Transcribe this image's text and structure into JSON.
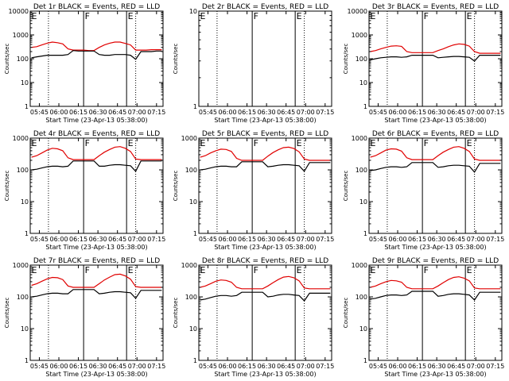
{
  "colors": {
    "events": "#000000",
    "lld": "#e00000",
    "axis": "#000000",
    "background": "#ffffff"
  },
  "common": {
    "ylabel": "Counts/sec",
    "xlabel": "Start Time (23-Apr-13 05:38:00)",
    "xticks": [
      "05:45",
      "06:00",
      "06:15",
      "06:30",
      "06:45",
      "07:00",
      "07:15"
    ],
    "yticks_log": [
      "1",
      "10",
      "100",
      "1000",
      "10000"
    ],
    "yticks_empty": [
      "1",
      "10"
    ]
  },
  "chart_data": [
    {
      "type": "line",
      "title": "Det 1r BLACK = Events, RED = LLD",
      "yscale": "log",
      "ylim": [
        1,
        10000
      ],
      "xlim": [
        "05:38",
        "07:20"
      ],
      "flags": [
        {
          "label": "E",
          "x": "05:38"
        },
        {
          "label": "F",
          "x": "06:19"
        },
        {
          "label": "E",
          "x": "06:52"
        }
      ],
      "dotted_x": [
        "05:52",
        "06:59"
      ],
      "solid_x": [
        "06:19",
        "06:52"
      ],
      "series": [
        {
          "name": "LLD",
          "values": [
            300,
            320,
            380,
            450,
            500,
            470,
            420,
            260,
            230,
            230,
            230,
            220,
            220,
            300,
            380,
            450,
            500,
            500,
            440,
            380,
            230,
            230,
            230,
            240,
            240,
            240
          ]
        },
        {
          "name": "Events",
          "values": [
            110,
            120,
            130,
            140,
            140,
            140,
            140,
            150,
            220,
            210,
            210,
            210,
            210,
            150,
            140,
            140,
            150,
            150,
            150,
            140,
            95,
            200,
            200,
            200,
            210,
            210
          ]
        }
      ]
    },
    {
      "type": "line",
      "title": "Det 2r BLACK = Events, RED = LLD",
      "yscale": "log",
      "ylim": [
        1,
        10
      ],
      "xlim": [
        "05:38",
        "07:20"
      ],
      "flags": [
        {
          "label": "E",
          "x": "05:38"
        },
        {
          "label": "F",
          "x": "06:19"
        },
        {
          "label": "E",
          "x": "06:52"
        }
      ],
      "dotted_x": [
        "05:52",
        "06:59"
      ],
      "solid_x": [
        "06:19",
        "06:52"
      ],
      "series": []
    },
    {
      "type": "line",
      "title": "Det 3r BLACK = Events, RED = LLD",
      "yscale": "log",
      "ylim": [
        1,
        10000
      ],
      "xlim": [
        "05:38",
        "07:20"
      ],
      "flags": [
        {
          "label": "E",
          "x": "05:38"
        },
        {
          "label": "F",
          "x": "06:19"
        },
        {
          "label": "E",
          "x": "06:52"
        }
      ],
      "dotted_x": [
        "05:52",
        "06:59"
      ],
      "solid_x": [
        "06:19",
        "06:52"
      ],
      "series": [
        {
          "name": "LLD",
          "values": [
            200,
            220,
            260,
            300,
            340,
            350,
            330,
            200,
            180,
            180,
            180,
            180,
            180,
            220,
            260,
            320,
            380,
            420,
            400,
            340,
            200,
            170,
            170,
            170,
            170,
            170
          ]
        },
        {
          "name": "Events",
          "values": [
            90,
            100,
            110,
            115,
            120,
            120,
            115,
            120,
            140,
            140,
            140,
            140,
            140,
            110,
            115,
            120,
            125,
            125,
            120,
            115,
            80,
            140,
            140,
            140,
            140,
            140
          ]
        }
      ]
    },
    {
      "type": "line",
      "title": "Det 4r BLACK = Events, RED = LLD",
      "yscale": "log",
      "ylim": [
        1,
        1000
      ],
      "xlim": [
        "05:38",
        "07:20"
      ],
      "flags": [
        {
          "label": "E",
          "x": "05:38"
        },
        {
          "label": "F",
          "x": "06:19"
        },
        {
          "label": "E",
          "x": "06:52"
        }
      ],
      "dotted_x": [
        "05:52",
        "06:59"
      ],
      "solid_x": [
        "06:19",
        "06:52"
      ],
      "series": [
        {
          "name": "LLD",
          "values": [
            250,
            280,
            340,
            420,
            480,
            460,
            400,
            240,
            210,
            210,
            210,
            210,
            210,
            280,
            360,
            440,
            520,
            540,
            480,
            380,
            220,
            210,
            210,
            210,
            210,
            210
          ]
        },
        {
          "name": "Events",
          "values": [
            100,
            105,
            115,
            125,
            130,
            130,
            125,
            130,
            190,
            190,
            190,
            190,
            190,
            130,
            130,
            140,
            145,
            145,
            140,
            135,
            90,
            190,
            190,
            190,
            190,
            190
          ]
        }
      ]
    },
    {
      "type": "line",
      "title": "Det 5r BLACK = Events, RED = LLD",
      "yscale": "log",
      "ylim": [
        1,
        1000
      ],
      "xlim": [
        "05:38",
        "07:20"
      ],
      "flags": [
        {
          "label": "E",
          "x": "05:38"
        },
        {
          "label": "F",
          "x": "06:19"
        },
        {
          "label": "E",
          "x": "06:52"
        }
      ],
      "dotted_x": [
        "05:52",
        "06:59"
      ],
      "solid_x": [
        "06:19",
        "06:52"
      ],
      "series": [
        {
          "name": "LLD",
          "values": [
            250,
            280,
            340,
            400,
            450,
            440,
            380,
            230,
            200,
            200,
            200,
            200,
            200,
            270,
            350,
            430,
            500,
            520,
            470,
            370,
            220,
            200,
            200,
            200,
            200,
            200
          ]
        },
        {
          "name": "Events",
          "values": [
            100,
            105,
            115,
            125,
            130,
            130,
            125,
            125,
            180,
            180,
            180,
            180,
            180,
            125,
            130,
            140,
            145,
            145,
            140,
            135,
            90,
            170,
            170,
            170,
            170,
            170
          ]
        }
      ]
    },
    {
      "type": "line",
      "title": "Det 6r BLACK = Events, RED = LLD",
      "yscale": "log",
      "ylim": [
        1,
        1000
      ],
      "xlim": [
        "05:38",
        "07:20"
      ],
      "flags": [
        {
          "label": "E",
          "x": "05:38"
        },
        {
          "label": "F",
          "x": "06:19"
        },
        {
          "label": "E",
          "x": "06:52"
        }
      ],
      "dotted_x": [
        "05:52",
        "06:59"
      ],
      "solid_x": [
        "06:19",
        "06:52"
      ],
      "series": [
        {
          "name": "LLD",
          "values": [
            250,
            280,
            340,
            420,
            460,
            450,
            390,
            240,
            210,
            210,
            210,
            210,
            210,
            280,
            360,
            440,
            520,
            540,
            480,
            380,
            220,
            200,
            200,
            200,
            200,
            200
          ]
        },
        {
          "name": "Events",
          "values": [
            95,
            100,
            110,
            120,
            125,
            125,
            120,
            125,
            170,
            170,
            170,
            170,
            170,
            120,
            125,
            135,
            140,
            140,
            135,
            130,
            85,
            160,
            160,
            160,
            160,
            160
          ]
        }
      ]
    },
    {
      "type": "line",
      "title": "Det 7r BLACK = Events, RED = LLD",
      "yscale": "log",
      "ylim": [
        1,
        1000
      ],
      "xlim": [
        "05:38",
        "07:20"
      ],
      "flags": [
        {
          "label": "E",
          "x": "05:38"
        },
        {
          "label": "F",
          "x": "06:19"
        },
        {
          "label": "E",
          "x": "06:52"
        }
      ],
      "dotted_x": [
        "05:52",
        "06:59"
      ],
      "solid_x": [
        "06:19",
        "06:52"
      ],
      "series": [
        {
          "name": "LLD",
          "values": [
            230,
            260,
            310,
            370,
            410,
            400,
            350,
            220,
            200,
            200,
            200,
            200,
            200,
            260,
            340,
            420,
            500,
            520,
            460,
            360,
            210,
            200,
            200,
            200,
            200,
            200
          ]
        },
        {
          "name": "Events",
          "values": [
            100,
            105,
            115,
            125,
            130,
            130,
            125,
            125,
            170,
            170,
            170,
            170,
            170,
            125,
            130,
            140,
            145,
            145,
            140,
            135,
            90,
            160,
            160,
            160,
            160,
            160
          ]
        }
      ]
    },
    {
      "type": "line",
      "title": "Det 8r BLACK = Events, RED = LLD",
      "yscale": "log",
      "ylim": [
        1,
        1000
      ],
      "xlim": [
        "05:38",
        "07:20"
      ],
      "flags": [
        {
          "label": "E",
          "x": "05:38"
        },
        {
          "label": "F",
          "x": "06:19"
        },
        {
          "label": "E",
          "x": "06:52"
        }
      ],
      "dotted_x": [
        "05:52",
        "06:59"
      ],
      "solid_x": [
        "06:19",
        "06:52"
      ],
      "series": [
        {
          "name": "LLD",
          "values": [
            200,
            220,
            260,
            310,
            340,
            330,
            290,
            200,
            180,
            180,
            180,
            180,
            180,
            220,
            280,
            350,
            420,
            440,
            400,
            320,
            190,
            180,
            180,
            180,
            180,
            180
          ]
        },
        {
          "name": "Events",
          "values": [
            80,
            85,
            95,
            105,
            110,
            110,
            105,
            110,
            140,
            140,
            140,
            140,
            140,
            100,
            105,
            115,
            120,
            120,
            115,
            110,
            75,
            130,
            130,
            130,
            130,
            130
          ]
        }
      ]
    },
    {
      "type": "line",
      "title": "Det 9r BLACK = Events, RED = LLD",
      "yscale": "log",
      "ylim": [
        1,
        1000
      ],
      "xlim": [
        "05:38",
        "07:20"
      ],
      "flags": [
        {
          "label": "E",
          "x": "05:38"
        },
        {
          "label": "F",
          "x": "06:19"
        },
        {
          "label": "E",
          "x": "06:52"
        }
      ],
      "dotted_x": [
        "05:52",
        "06:59"
      ],
      "solid_x": [
        "06:19",
        "06:52"
      ],
      "series": [
        {
          "name": "LLD",
          "values": [
            200,
            220,
            260,
            300,
            330,
            320,
            290,
            200,
            180,
            180,
            180,
            180,
            180,
            220,
            280,
            350,
            410,
            430,
            390,
            320,
            190,
            180,
            180,
            180,
            180,
            180
          ]
        },
        {
          "name": "Events",
          "values": [
            85,
            90,
            100,
            110,
            115,
            115,
            110,
            115,
            150,
            150,
            150,
            150,
            150,
            105,
            110,
            120,
            125,
            125,
            120,
            115,
            80,
            140,
            140,
            140,
            140,
            140
          ]
        }
      ]
    }
  ]
}
